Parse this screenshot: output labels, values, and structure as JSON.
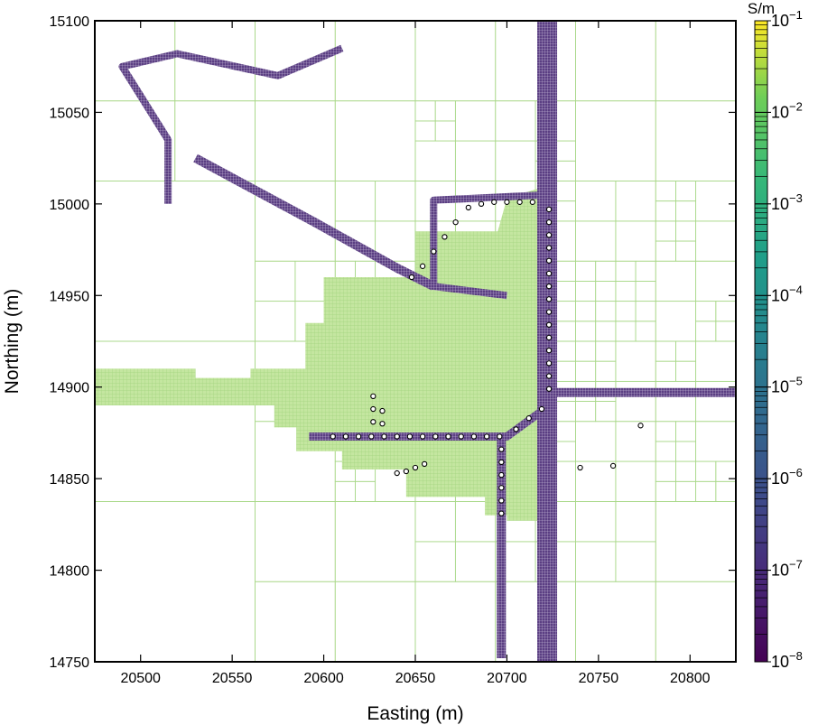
{
  "chart_data": {
    "type": "heatmap",
    "xlabel": "Easting (m)",
    "ylabel": "Northing (m)",
    "xlim": [
      20475,
      20825
    ],
    "ylim": [
      14750,
      15100
    ],
    "xticks": [
      "20500",
      "20550",
      "20600",
      "20650",
      "20700",
      "20750",
      "20800"
    ],
    "yticks": [
      "14750",
      "14800",
      "14850",
      "14900",
      "14950",
      "15000",
      "15050",
      "15100"
    ],
    "colorbar": {
      "unit": "S/m",
      "scale": "log",
      "range": [
        1e-08,
        0.1
      ],
      "tick_exponents": [
        "−8",
        "−7",
        "−6",
        "−5",
        "−4",
        "−3",
        "−2",
        "−1"
      ],
      "tick_base": "10",
      "colormap": "viridis"
    },
    "background_conductivity": "1e-3",
    "conductor_conductivity": "1e-8",
    "colors": {
      "mesh_line": "#a8d888",
      "fine_fill": "#b6e08f",
      "conductor_fill": "#6a4a8e",
      "conductor_mesh": "#ffffff",
      "receiver_edge": "#000000"
    },
    "conductors": [
      {
        "name": "vertical-shaft",
        "pts": [
          [
            20722,
            15100
          ],
          [
            20722,
            14750
          ]
        ]
      },
      {
        "name": "east-drift",
        "pts": [
          [
            20722,
            14897
          ],
          [
            20825,
            14897
          ]
        ]
      },
      {
        "name": "main-drift",
        "pts": [
          [
            20592,
            14873
          ],
          [
            20700,
            14873
          ],
          [
            20722,
            14889
          ]
        ]
      },
      {
        "name": "south-drift",
        "pts": [
          [
            20697,
            14873
          ],
          [
            20697,
            14752
          ]
        ]
      },
      {
        "name": "north-loop",
        "pts": [
          [
            20722,
            15005
          ],
          [
            20660,
            15002
          ],
          [
            20660,
            14955
          ],
          [
            20700,
            14950
          ]
        ]
      },
      {
        "name": "nw-drift",
        "pts": [
          [
            20660,
            14955
          ],
          [
            20640,
            14965
          ],
          [
            20595,
            14990
          ],
          [
            20530,
            15025
          ]
        ]
      },
      {
        "name": "far-nw",
        "pts": [
          [
            20515,
            15000
          ],
          [
            20515,
            15035
          ],
          [
            20490,
            15075
          ],
          [
            20520,
            15082
          ],
          [
            20575,
            15070
          ],
          [
            20610,
            15085
          ]
        ]
      }
    ],
    "receivers": [
      [
        20723,
        14997
      ],
      [
        20723,
        14990
      ],
      [
        20723,
        14983
      ],
      [
        20723,
        14976
      ],
      [
        20723,
        14969
      ],
      [
        20723,
        14962
      ],
      [
        20723,
        14955
      ],
      [
        20723,
        14948
      ],
      [
        20723,
        14941
      ],
      [
        20723,
        14934
      ],
      [
        20723,
        14927
      ],
      [
        20723,
        14920
      ],
      [
        20723,
        14913
      ],
      [
        20723,
        14906
      ],
      [
        20723,
        14899
      ],
      [
        20714,
        15001
      ],
      [
        20707,
        15001
      ],
      [
        20700,
        15001
      ],
      [
        20693,
        15001
      ],
      [
        20686,
        15000
      ],
      [
        20679,
        14998
      ],
      [
        20672,
        14990
      ],
      [
        20666,
        14982
      ],
      [
        20660,
        14974
      ],
      [
        20654,
        14966
      ],
      [
        20648,
        14960
      ],
      [
        20605,
        14873
      ],
      [
        20612,
        14873
      ],
      [
        20619,
        14873
      ],
      [
        20626,
        14873
      ],
      [
        20633,
        14873
      ],
      [
        20640,
        14873
      ],
      [
        20647,
        14873
      ],
      [
        20654,
        14873
      ],
      [
        20661,
        14873
      ],
      [
        20668,
        14873
      ],
      [
        20675,
        14873
      ],
      [
        20682,
        14873
      ],
      [
        20689,
        14873
      ],
      [
        20696,
        14873
      ],
      [
        20705,
        14877
      ],
      [
        20712,
        14883
      ],
      [
        20719,
        14888
      ],
      [
        20697,
        14866
      ],
      [
        20697,
        14859
      ],
      [
        20697,
        14852
      ],
      [
        20697,
        14845
      ],
      [
        20697,
        14838
      ],
      [
        20697,
        14831
      ],
      [
        20627,
        14895
      ],
      [
        20627,
        14888
      ],
      [
        20627,
        14881
      ],
      [
        20632,
        14880
      ],
      [
        20632,
        14887
      ],
      [
        20640,
        14853
      ],
      [
        20645,
        14854
      ],
      [
        20650,
        14856
      ],
      [
        20655,
        14858
      ],
      [
        20740,
        14856
      ],
      [
        20758,
        14857
      ],
      [
        20773,
        14879
      ]
    ]
  }
}
